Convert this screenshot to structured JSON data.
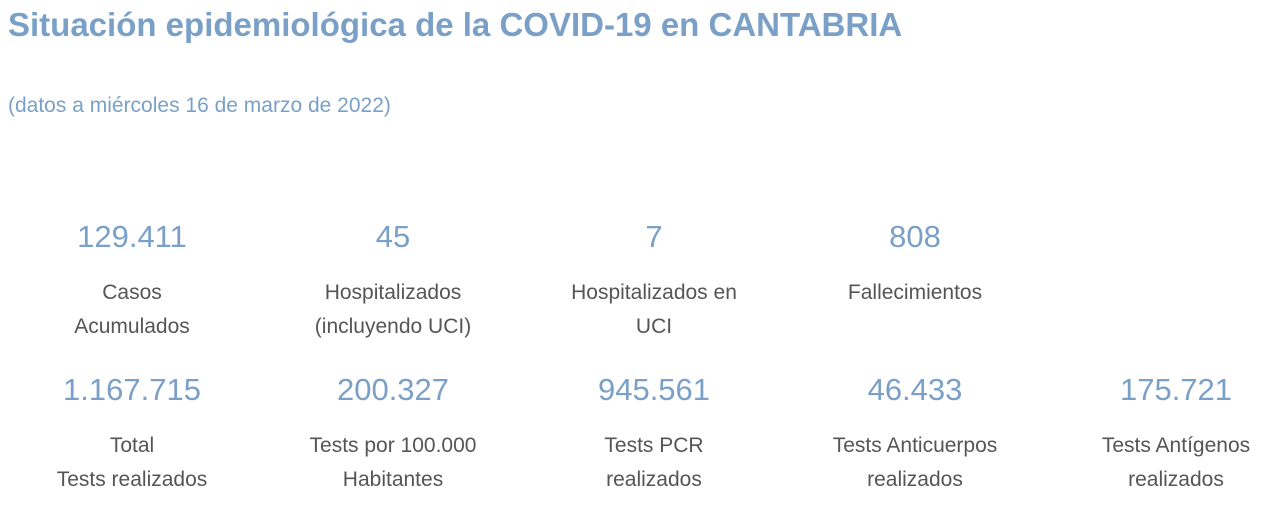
{
  "page": {
    "title": "Situación epidemiológica de la COVID-19 en CANTABRIA",
    "subtitle": "(datos a miércoles 16 de marzo de 2022)"
  },
  "stats_row1": [
    {
      "value": "129.411",
      "label_line1": "Casos",
      "label_line2": "Acumulados"
    },
    {
      "value": "45",
      "label_line1": "Hospitalizados",
      "label_line2": "(incluyendo UCI)"
    },
    {
      "value": "7",
      "label_line1": "Hospitalizados en",
      "label_line2": "UCI"
    },
    {
      "value": "808",
      "label_line1": "Fallecimientos",
      "label_line2": ""
    }
  ],
  "stats_row2": [
    {
      "value": "1.167.715",
      "label_line1": "Total",
      "label_line2": "Tests realizados"
    },
    {
      "value": "200.327",
      "label_line1": "Tests por 100.000",
      "label_line2": "Habitantes"
    },
    {
      "value": "945.561",
      "label_line1": "Tests PCR",
      "label_line2": "realizados"
    },
    {
      "value": "46.433",
      "label_line1": "Tests Anticuerpos",
      "label_line2": "realizados"
    },
    {
      "value": "175.721",
      "label_line1": "Tests Antígenos",
      "label_line2": "realizados"
    }
  ],
  "colors": {
    "accent": "#7aa0c8",
    "label_text": "#555555",
    "background": "#ffffff"
  }
}
